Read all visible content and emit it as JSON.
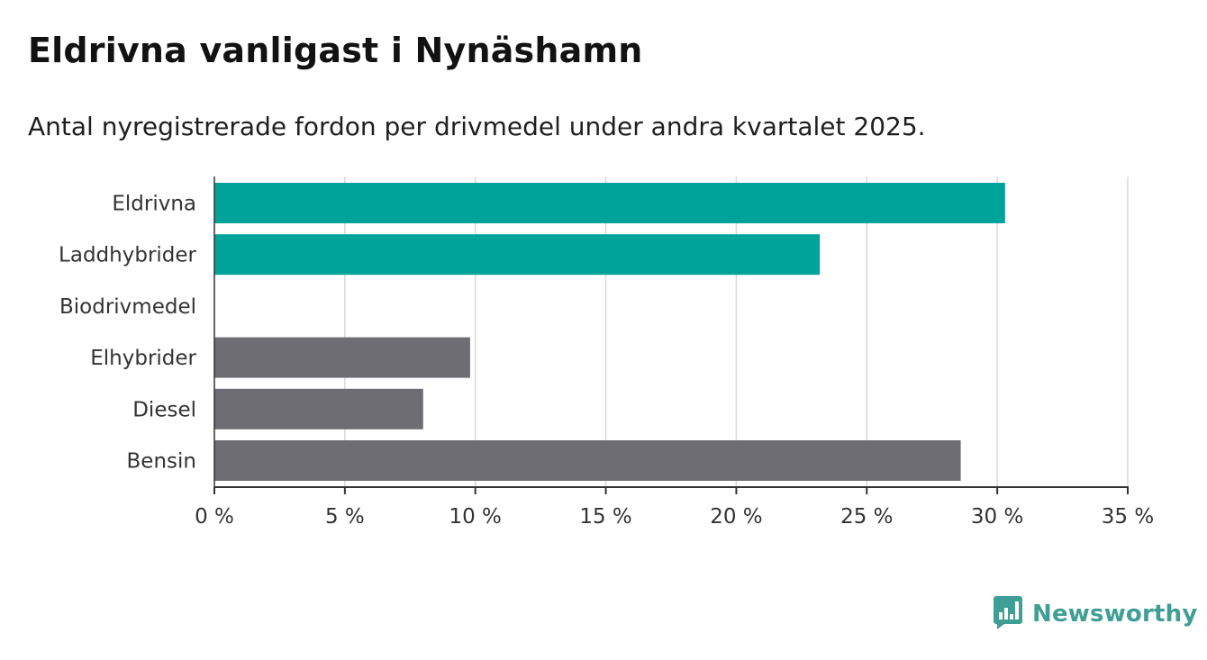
{
  "header": {
    "title": "Eldrivna vanligast i Nynäshamn",
    "subtitle": "Antal nyregistrerade fordon per drivmedel under andra kvartalet 2025."
  },
  "brand": {
    "name": "Newsworthy",
    "color": "#3f9e95",
    "icon": "newsworthy-bar-chart-icon"
  },
  "colors": {
    "highlight": "#00a39a",
    "default": "#6e6d73",
    "grid": "#d9d9d9",
    "axis": "#333333"
  },
  "chart_data": {
    "type": "bar",
    "orientation": "horizontal",
    "title": "Eldrivna vanligast i Nynäshamn",
    "subtitle": "Antal nyregistrerade fordon per drivmedel under andra kvartalet 2025.",
    "xlabel": "",
    "ylabel": "",
    "categories": [
      "Eldrivna",
      "Laddhybrider",
      "Biodrivmedel",
      "Elhybrider",
      "Diesel",
      "Bensin"
    ],
    "values": [
      30.3,
      23.2,
      0,
      9.8,
      8.0,
      28.6
    ],
    "highlighted": [
      true,
      true,
      false,
      false,
      false,
      false
    ],
    "xlim": [
      0,
      35
    ],
    "ticks": [
      0,
      5,
      10,
      15,
      20,
      25,
      30,
      35
    ],
    "tick_labels": [
      "0 %",
      "5 %",
      "10 %",
      "15 %",
      "20 %",
      "25 %",
      "30 %",
      "35 %"
    ],
    "grid": true,
    "legend": "none"
  }
}
